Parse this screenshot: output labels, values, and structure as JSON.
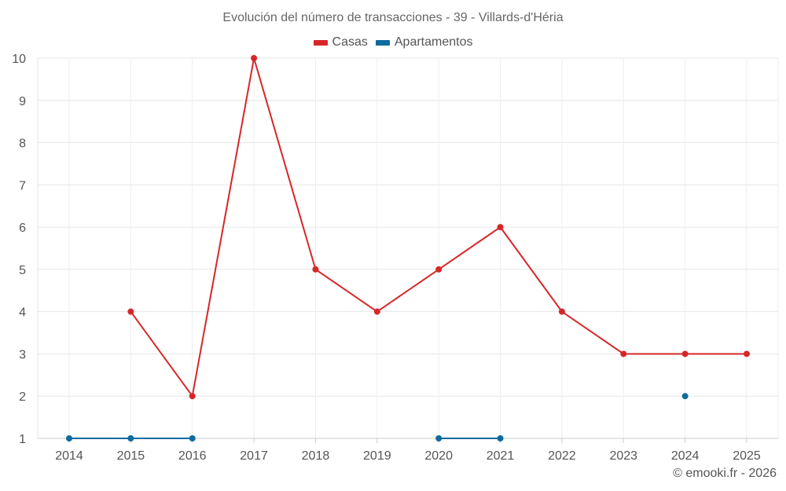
{
  "chart_data": {
    "type": "line",
    "title": "Evolución del número de transacciones - 39 - Villards-d'Héria",
    "categories": [
      "2014",
      "2015",
      "2016",
      "2017",
      "2018",
      "2019",
      "2020",
      "2021",
      "2022",
      "2023",
      "2024",
      "2025"
    ],
    "xlabel": "",
    "ylabel": "",
    "ylim": [
      1,
      10
    ],
    "yticks": [
      "1",
      "2",
      "3",
      "4",
      "5",
      "6",
      "7",
      "8",
      "9",
      "10"
    ],
    "grid": true,
    "legend_position": "top-center",
    "series": [
      {
        "name": "Casas",
        "color": "#d62728",
        "values": [
          null,
          4,
          2,
          10,
          5,
          4,
          5,
          6,
          4,
          3,
          3,
          3
        ]
      },
      {
        "name": "Apartamentos",
        "color": "#0f6aa0",
        "values": [
          1,
          1,
          1,
          null,
          null,
          null,
          1,
          1,
          null,
          null,
          2,
          null
        ]
      }
    ]
  },
  "credit": "© emooki.fr - 2026"
}
